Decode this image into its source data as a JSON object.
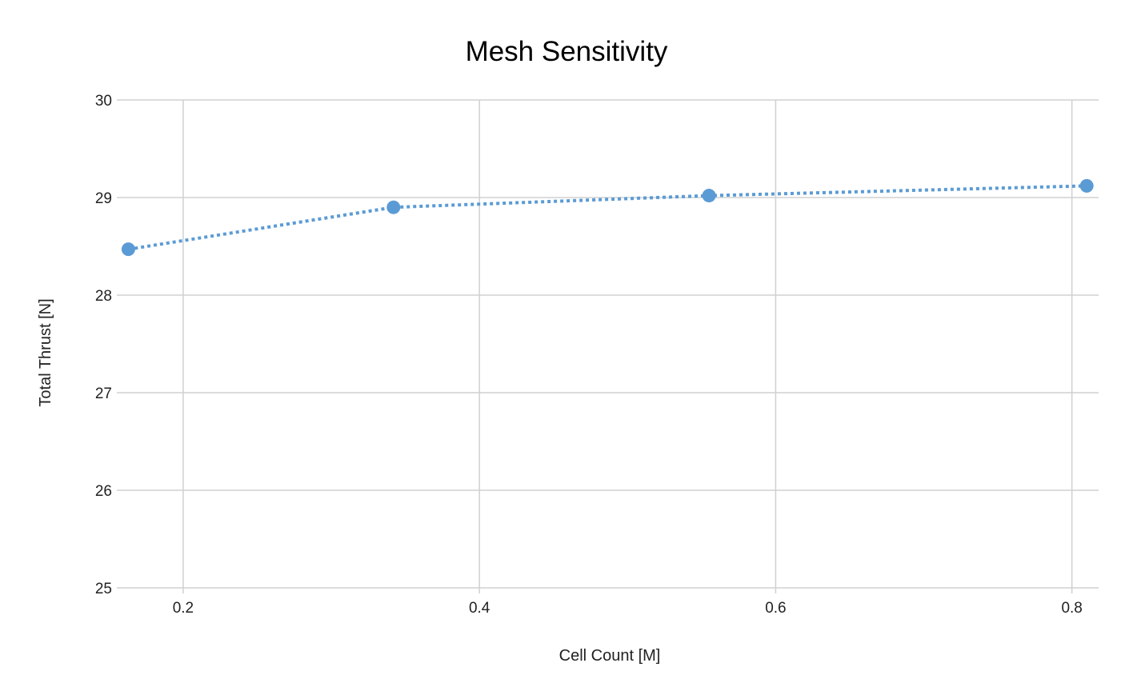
{
  "chart_data": {
    "type": "scatter",
    "title": "Mesh Sensitivity",
    "xlabel": "Cell Count [M]",
    "ylabel": "Total Thrust [N]",
    "xlim": [
      0.159,
      0.818
    ],
    "ylim": [
      25,
      30
    ],
    "x_ticks": [
      0.2,
      0.4,
      0.6,
      0.8
    ],
    "x_tick_labels": [
      "0.2",
      "0.4",
      "0.6",
      "0.8"
    ],
    "y_ticks": [
      25,
      26,
      27,
      28,
      29,
      30
    ],
    "y_tick_labels": [
      "25",
      "26",
      "27",
      "28",
      "29",
      "30"
    ],
    "grid": true,
    "legend": "none",
    "line_style": "dotted",
    "series": [
      {
        "x": [
          0.163,
          0.342,
          0.555,
          0.81
        ],
        "y": [
          28.47,
          28.9,
          29.02,
          29.12
        ],
        "color": "#5b9bd5"
      }
    ]
  }
}
